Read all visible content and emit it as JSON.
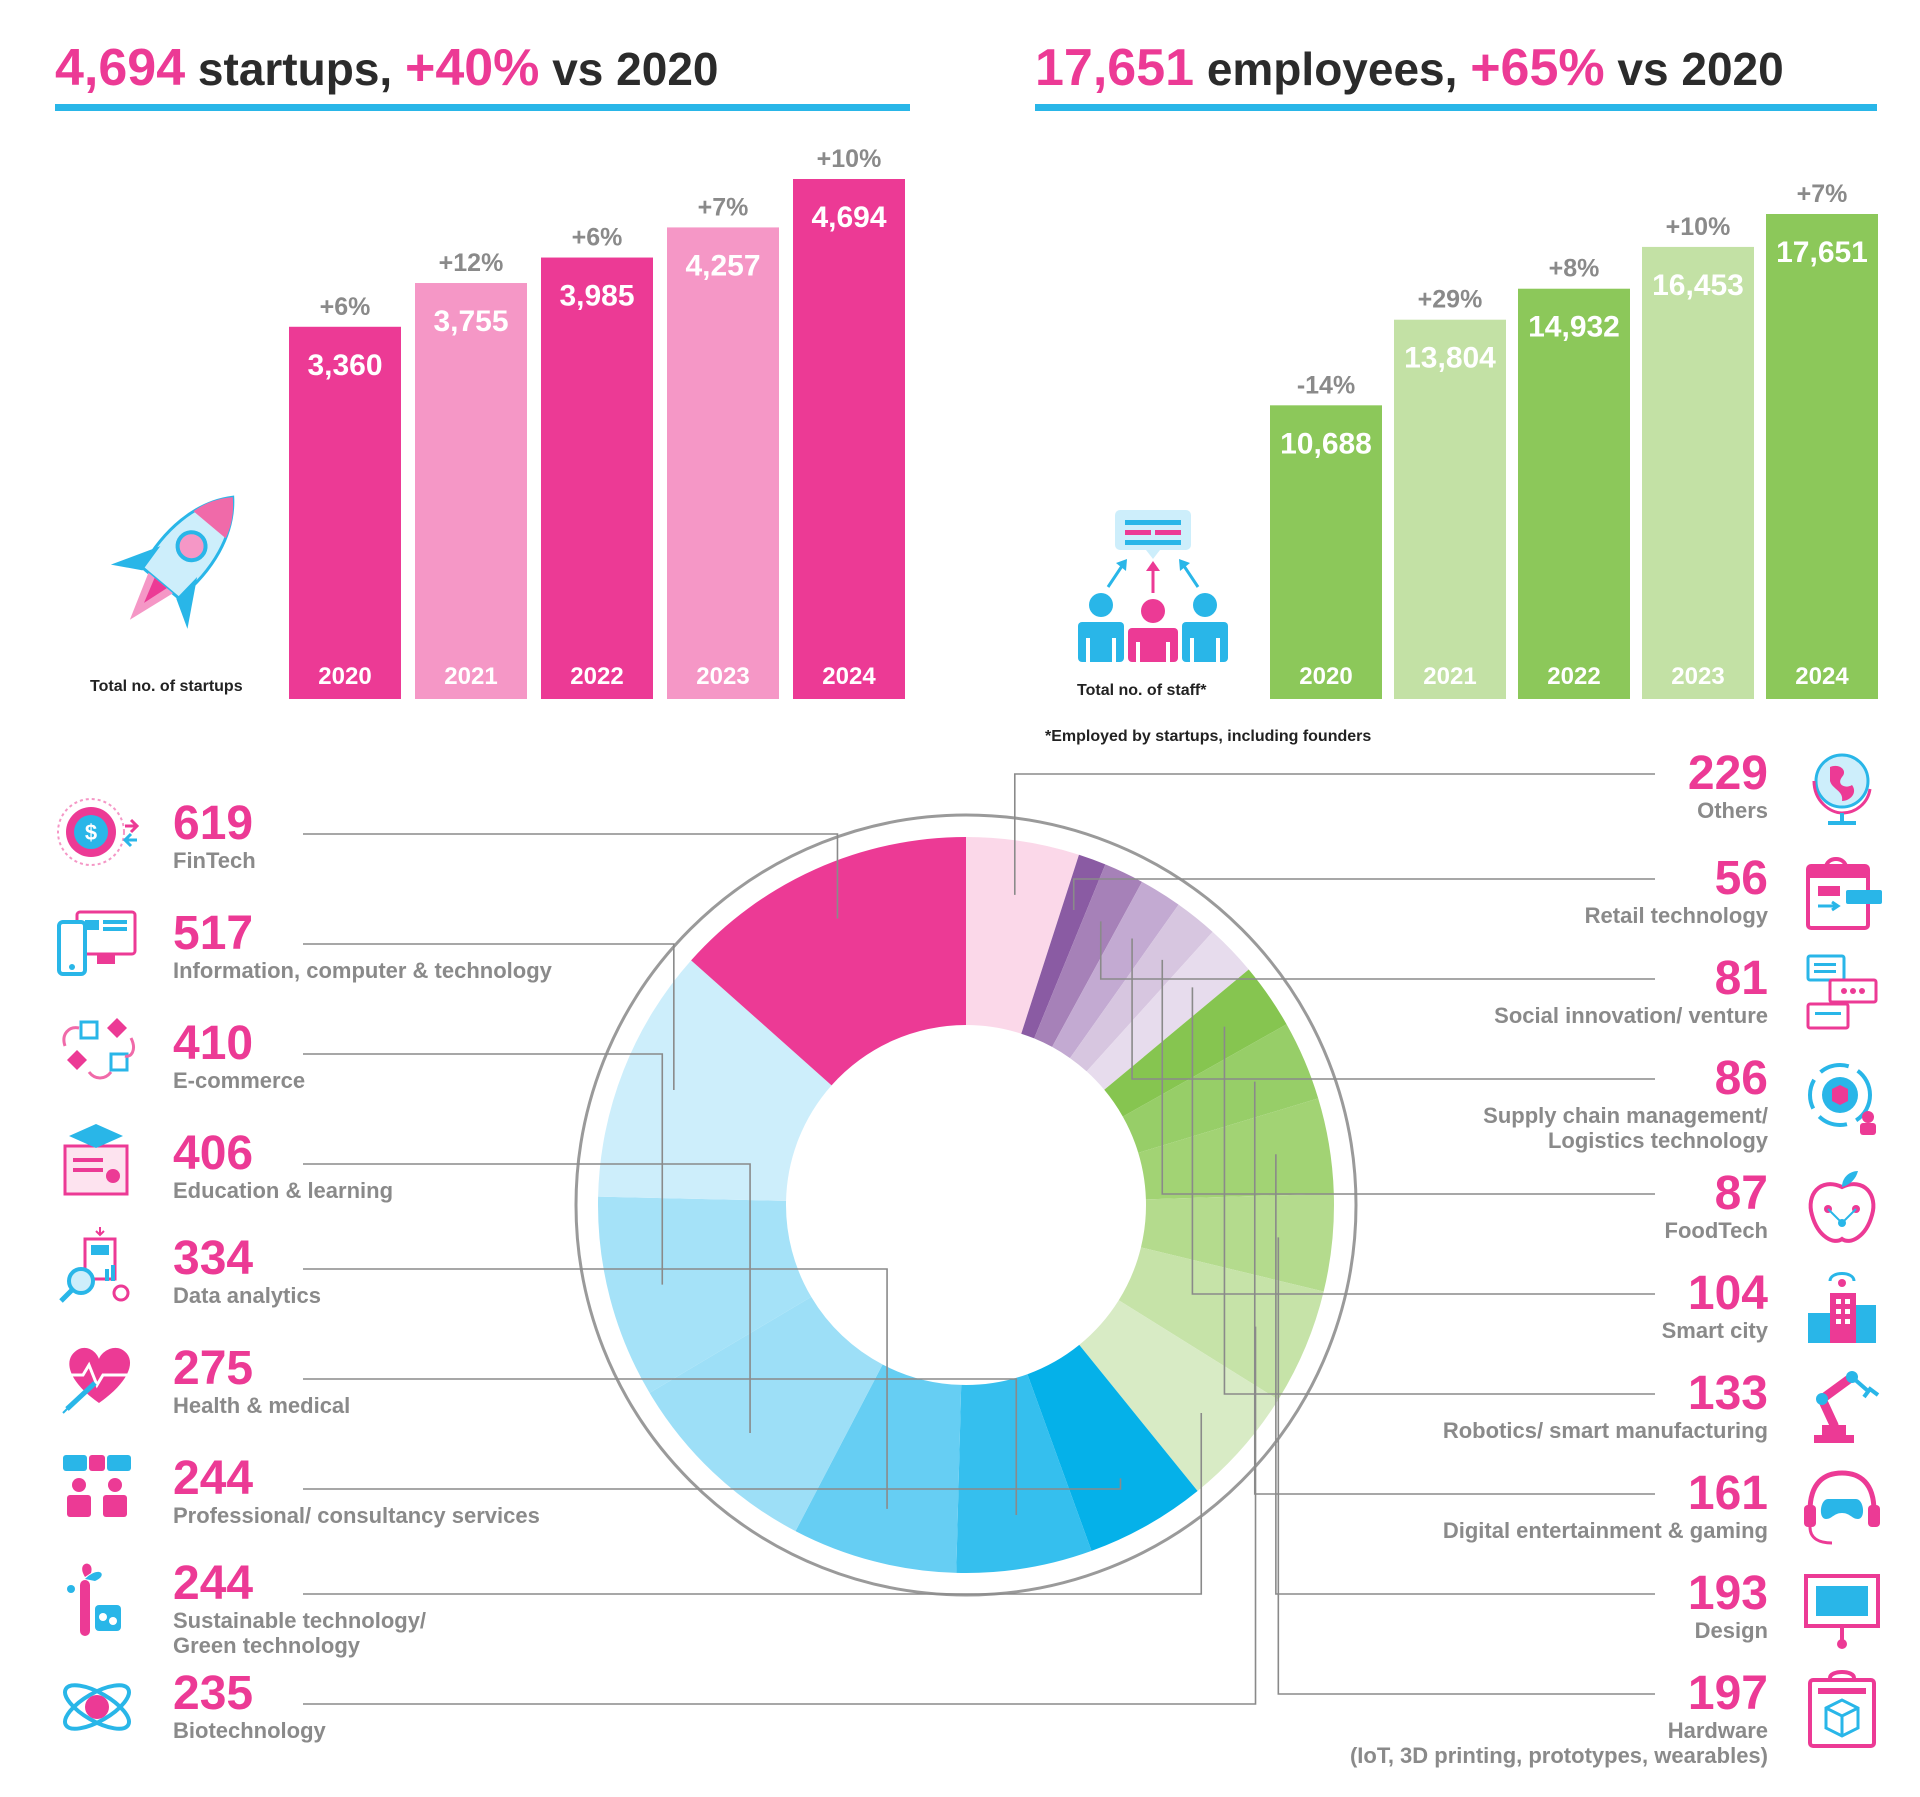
{
  "headline_left": {
    "value": "4,694",
    "text1": " startups, ",
    "pct": "+40%",
    "text2": " vs 2020"
  },
  "headline_right": {
    "value": "17,651",
    "text1": " employees, ",
    "pct": "+65%",
    "text2": " vs 2020"
  },
  "colors": {
    "pink_dark": "#ec3a95",
    "pink_light": "#f597c6",
    "green_dark": "#8cc85a",
    "green_light": "#c3e1a5",
    "blue_rule": "#29b6e8"
  },
  "icons": {
    "startups": "rocket-icon",
    "staff": "team-presentation-icon"
  },
  "chart_data": [
    {
      "type": "bar",
      "title": "Total no. of startups",
      "categories": [
        "2020",
        "2021",
        "2022",
        "2023",
        "2024"
      ],
      "values": [
        3360,
        3755,
        3985,
        4257,
        4694
      ],
      "value_labels": [
        "3,360",
        "3,755",
        "3,985",
        "4,257",
        "4,694"
      ],
      "change_labels": [
        "+6%",
        "+12%",
        "+6%",
        "+7%",
        "+10%"
      ]
    },
    {
      "type": "bar",
      "title": "Total no. of staff*",
      "note": "*Employed by startups, including founders",
      "categories": [
        "2020",
        "2021",
        "2022",
        "2023",
        "2024"
      ],
      "values": [
        10688,
        13804,
        14932,
        16453,
        17651
      ],
      "value_labels": [
        "10,688",
        "13,804",
        "14,932",
        "16,453",
        "17,651"
      ],
      "change_labels": [
        "-14%",
        "+29%",
        "+8%",
        "+10%",
        "+7%"
      ]
    },
    {
      "type": "pie",
      "categories": [
        {
          "value": 619,
          "label": "619",
          "name": "FinTech",
          "color": "#ec3a95",
          "side": "left",
          "icon": "fintech-dollar-icon"
        },
        {
          "value": 517,
          "label": "517",
          "name": "Information, computer & technology",
          "color": "#cdeefb",
          "side": "left",
          "icon": "computer-devices-icon"
        },
        {
          "value": 410,
          "label": "410",
          "name": "E-commerce",
          "color": "#a5e2f8",
          "side": "left",
          "icon": "ecommerce-flow-icon"
        },
        {
          "value": 406,
          "label": "406",
          "name": "Education & learning",
          "color": "#9ddff7",
          "side": "left",
          "icon": "graduation-certificate-icon"
        },
        {
          "value": 334,
          "label": "334",
          "name": "Data analytics",
          "color": "#66cef3",
          "side": "left",
          "icon": "data-analytics-icon"
        },
        {
          "value": 275,
          "label": "275",
          "name": "Health & medical",
          "color": "#35bfee",
          "side": "left",
          "icon": "health-heart-icon"
        },
        {
          "value": 244,
          "label": "244",
          "name": "Professional/ consultancy services",
          "color": "#05b1e9",
          "side": "left",
          "icon": "consultancy-people-icon"
        },
        {
          "value": 244,
          "label": "244",
          "name": "Sustainable technology/\nGreen technology",
          "color": "#d8ebc5",
          "side": "left",
          "icon": "green-tech-plant-icon"
        },
        {
          "value": 235,
          "label": "235",
          "name": "Biotechnology",
          "color": "#c6e3a8",
          "side": "left",
          "icon": "atom-icon"
        },
        {
          "value": 197,
          "label": "197",
          "name": "Hardware\n(IoT, 3D printing, prototypes, wearables)",
          "color": "#b4db8d",
          "side": "right",
          "icon": "hardware-3d-printer-icon"
        },
        {
          "value": 193,
          "label": "193",
          "name": "Design",
          "color": "#a2d374",
          "side": "right",
          "icon": "design-board-icon"
        },
        {
          "value": 161,
          "label": "161",
          "name": "Digital entertainment & gaming",
          "color": "#97ce68",
          "side": "right",
          "icon": "gaming-headset-icon"
        },
        {
          "value": 133,
          "label": "133",
          "name": "Robotics/ smart manufacturing",
          "color": "#86c550",
          "side": "right",
          "icon": "robot-arm-icon"
        },
        {
          "value": 104,
          "label": "104",
          "name": "Smart city",
          "color": "#e7dced",
          "side": "right",
          "icon": "smart-city-icon"
        },
        {
          "value": 87,
          "label": "87",
          "name": "FoodTech",
          "color": "#d7c6e0",
          "side": "right",
          "icon": "foodtech-apple-icon"
        },
        {
          "value": 86,
          "label": "86",
          "name": "Supply chain management/\nLogistics technology",
          "color": "#c3aad2",
          "side": "right",
          "icon": "supply-chain-gear-icon"
        },
        {
          "value": 81,
          "label": "81",
          "name": "Social innovation/ venture",
          "color": "#a681b8",
          "side": "right",
          "icon": "social-chat-icon"
        },
        {
          "value": 56,
          "label": "56",
          "name": "Retail technology",
          "color": "#8a5ba3",
          "side": "right",
          "icon": "retail-bag-icon"
        },
        {
          "value": 229,
          "label": "229",
          "name": "Others",
          "color": "#fbd8e9",
          "side": "right",
          "icon": "globe-icon"
        }
      ]
    }
  ]
}
